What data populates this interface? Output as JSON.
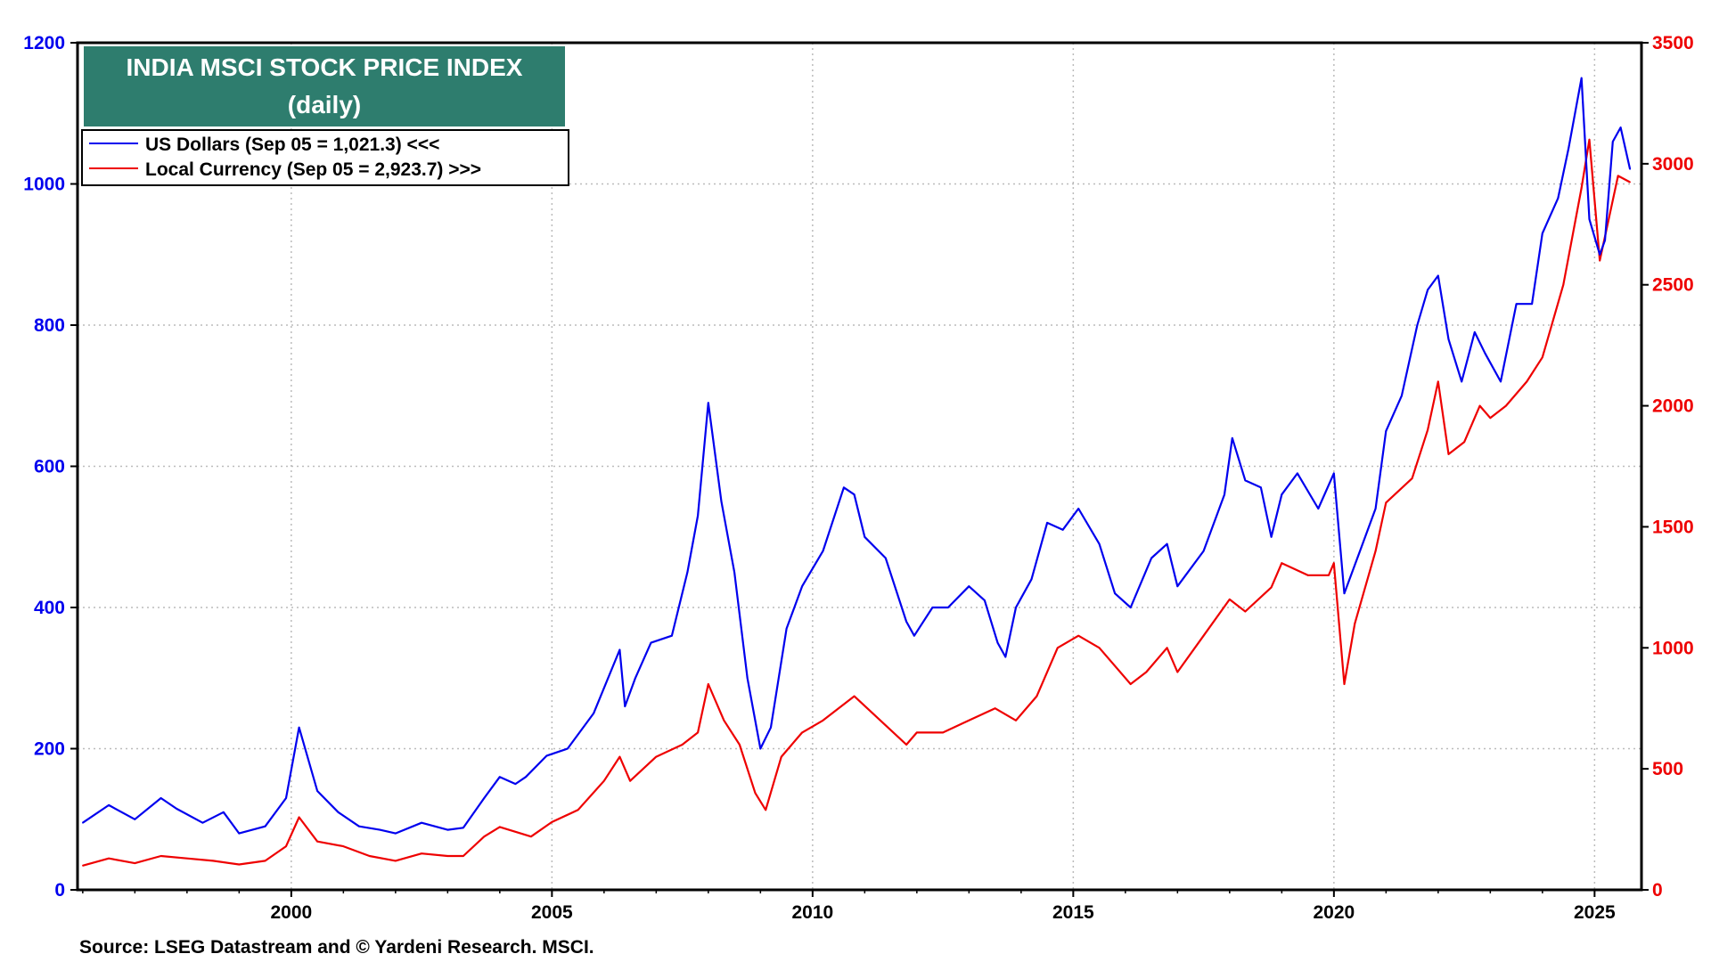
{
  "chart_data": {
    "type": "line",
    "title": "INDIA MSCI STOCK PRICE INDEX",
    "subtitle": "(daily)",
    "source": "Source: LSEG Datastream and © Yardeni Research. MSCI.",
    "xlim": [
      1995.9,
      2025.9
    ],
    "x_ticks": [
      2000,
      2005,
      2010,
      2015,
      2020,
      2025
    ],
    "x_tick_labels": [
      "2000",
      "2005",
      "2010",
      "2015",
      "2020",
      "2025"
    ],
    "y_left": {
      "lim": [
        0,
        1200
      ],
      "ticks": [
        0,
        200,
        400,
        600,
        800,
        1000,
        1200
      ],
      "tick_labels": [
        "0",
        "200",
        "400",
        "600",
        "800",
        "1000",
        "1200"
      ]
    },
    "y_right": {
      "lim": [
        0,
        3500
      ],
      "ticks": [
        0,
        500,
        1000,
        1500,
        2000,
        2500,
        3000,
        3500
      ],
      "tick_labels": [
        "0",
        "500",
        "1000",
        "1500",
        "2000",
        "2500",
        "3000",
        "3500"
      ]
    },
    "grid": true,
    "legend_position": "top-left",
    "series": [
      {
        "name": "US Dollars (Sep 05 = 1,021.3) <<<",
        "axis": "left",
        "color": "#0000ee",
        "x": [
          1996.0,
          1996.5,
          1997.0,
          1997.5,
          1997.8,
          1998.3,
          1998.7,
          1999.0,
          1999.5,
          1999.9,
          2000.15,
          2000.5,
          2000.9,
          2001.3,
          2001.7,
          2002.0,
          2002.5,
          2003.0,
          2003.3,
          2003.7,
          2004.0,
          2004.3,
          2004.5,
          2004.9,
          2005.3,
          2005.8,
          2006.3,
          2006.4,
          2006.6,
          2006.9,
          2007.3,
          2007.6,
          2007.8,
          2008.0,
          2008.25,
          2008.5,
          2008.75,
          2009.0,
          2009.2,
          2009.5,
          2009.8,
          2010.2,
          2010.6,
          2010.8,
          2011.0,
          2011.4,
          2011.8,
          2011.95,
          2012.3,
          2012.6,
          2013.0,
          2013.3,
          2013.55,
          2013.7,
          2013.9,
          2014.2,
          2014.5,
          2014.8,
          2015.1,
          2015.5,
          2015.8,
          2016.1,
          2016.5,
          2016.8,
          2017.0,
          2017.5,
          2017.9,
          2018.05,
          2018.3,
          2018.6,
          2018.8,
          2019.0,
          2019.3,
          2019.7,
          2020.0,
          2020.2,
          2020.5,
          2020.8,
          2021.0,
          2021.3,
          2021.6,
          2021.8,
          2022.0,
          2022.2,
          2022.45,
          2022.7,
          2022.9,
          2023.2,
          2023.5,
          2023.8,
          2024.0,
          2024.3,
          2024.5,
          2024.75,
          2024.9,
          2025.1,
          2025.2,
          2025.35,
          2025.5,
          2025.68
        ],
        "values": [
          95,
          120,
          100,
          130,
          115,
          95,
          110,
          80,
          90,
          130,
          230,
          140,
          110,
          90,
          85,
          80,
          95,
          85,
          88,
          130,
          160,
          150,
          160,
          190,
          200,
          250,
          340,
          260,
          300,
          350,
          360,
          450,
          530,
          690,
          550,
          450,
          300,
          200,
          230,
          370,
          430,
          480,
          570,
          560,
          500,
          470,
          380,
          360,
          400,
          400,
          430,
          410,
          350,
          330,
          400,
          440,
          520,
          510,
          540,
          490,
          420,
          400,
          470,
          490,
          430,
          480,
          560,
          640,
          580,
          570,
          500,
          560,
          590,
          540,
          590,
          420,
          480,
          540,
          650,
          700,
          800,
          850,
          870,
          780,
          720,
          790,
          760,
          720,
          830,
          830,
          930,
          980,
          1050,
          1150,
          950,
          900,
          920,
          1060,
          1080,
          1021
        ]
      },
      {
        "name": "Local Currency (Sep 05 = 2,923.7) >>>",
        "axis": "right",
        "color": "#ee0000",
        "x": [
          1996.0,
          1996.5,
          1997.0,
          1997.5,
          1998.0,
          1998.5,
          1999.0,
          1999.5,
          1999.9,
          2000.15,
          2000.5,
          2001.0,
          2001.5,
          2002.0,
          2002.5,
          2003.0,
          2003.3,
          2003.7,
          2004.0,
          2004.3,
          2004.6,
          2005.0,
          2005.5,
          2006.0,
          2006.3,
          2006.5,
          2007.0,
          2007.5,
          2007.8,
          2008.0,
          2008.3,
          2008.6,
          2008.9,
          2009.1,
          2009.4,
          2009.8,
          2010.2,
          2010.8,
          2011.3,
          2011.8,
          2012.0,
          2012.5,
          2013.0,
          2013.5,
          2013.9,
          2014.3,
          2014.7,
          2015.1,
          2015.5,
          2016.1,
          2016.4,
          2016.8,
          2017.0,
          2017.5,
          2018.0,
          2018.3,
          2018.8,
          2019.0,
          2019.5,
          2019.9,
          2020.0,
          2020.2,
          2020.4,
          2020.8,
          2021.0,
          2021.5,
          2021.8,
          2022.0,
          2022.2,
          2022.5,
          2022.8,
          2023.0,
          2023.3,
          2023.7,
          2024.0,
          2024.4,
          2024.75,
          2024.9,
          2025.1,
          2025.25,
          2025.45,
          2025.68
        ],
        "values": [
          100,
          130,
          110,
          140,
          130,
          120,
          105,
          120,
          180,
          300,
          200,
          180,
          140,
          120,
          150,
          140,
          140,
          220,
          260,
          240,
          220,
          280,
          330,
          450,
          550,
          450,
          550,
          600,
          650,
          850,
          700,
          600,
          400,
          330,
          550,
          650,
          700,
          800,
          700,
          600,
          650,
          650,
          700,
          750,
          700,
          800,
          1000,
          1050,
          1000,
          850,
          900,
          1000,
          900,
          1050,
          1200,
          1150,
          1250,
          1350,
          1300,
          1300,
          1350,
          850,
          1100,
          1400,
          1600,
          1700,
          1900,
          2100,
          1800,
          1850,
          2000,
          1950,
          2000,
          2100,
          2200,
          2500,
          2900,
          3100,
          2600,
          2750,
          2950,
          2924
        ]
      }
    ]
  },
  "colors": {
    "left_axis": "#0000ee",
    "right_axis": "#ee0000",
    "title_box": "#2e7d6e",
    "grid": "#bbbbbb"
  }
}
